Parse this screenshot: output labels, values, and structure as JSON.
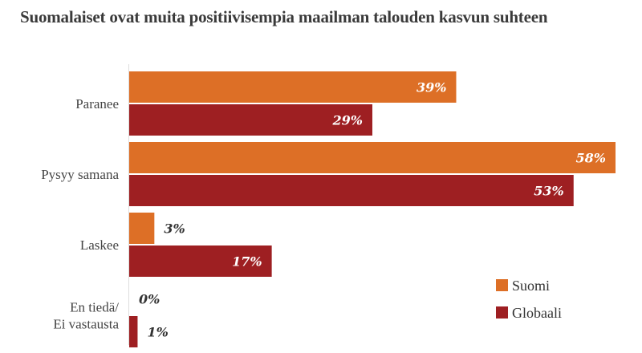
{
  "chart_data": {
    "type": "bar",
    "orientation": "horizontal",
    "title": "Suomalaiset ovat muita positiivisempia maailman talouden kasvun suhteen",
    "categories": [
      [
        "Paranee"
      ],
      [
        "Pysyy samana"
      ],
      [
        "Laskee"
      ],
      [
        "En tiedä/",
        "Ei vastausta"
      ]
    ],
    "series": [
      {
        "name": "Suomi",
        "color": "#dd6f26",
        "values": [
          39,
          58,
          3,
          0
        ],
        "labels": [
          "39%",
          "58%",
          "3%",
          "0%"
        ]
      },
      {
        "name": "Globaali",
        "color": "#9e1f22",
        "values": [
          29,
          53,
          17,
          1
        ],
        "labels": [
          "29%",
          "53%",
          "17%",
          "1%"
        ]
      }
    ],
    "xlim": [
      0,
      58
    ],
    "grid": false,
    "legend_position": "bottom-right",
    "label_color_inside": "#ffffff",
    "label_color_outside": "#333333"
  }
}
